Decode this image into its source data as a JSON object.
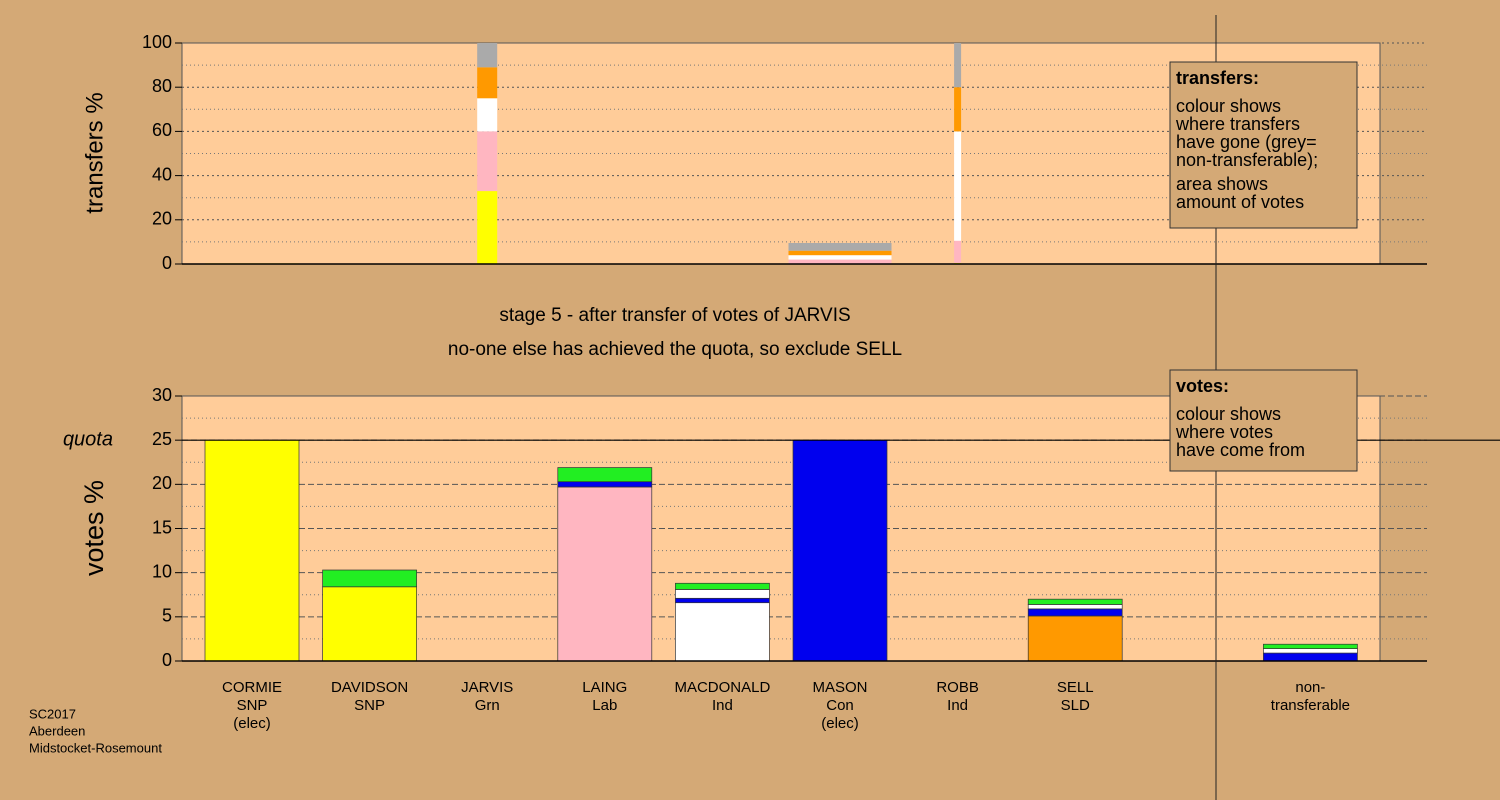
{
  "chart_data": [
    {
      "type": "bar",
      "stacked": true,
      "y_label": "transfers %",
      "ylim": [
        0,
        100
      ],
      "yticks": [
        0,
        20,
        40,
        60,
        80,
        100
      ],
      "minor_yticks": [
        10,
        30,
        50,
        70,
        90
      ],
      "stacks": [
        [
          {
            "value": 0.3,
            "color": "#ffff00"
          }
        ],
        [],
        [
          {
            "value": 33,
            "color": "#ffff00"
          },
          {
            "value": 27,
            "color": "#ffb6c1"
          },
          {
            "value": 15,
            "color": "#ffffff"
          },
          {
            "value": 14,
            "color": "#ff9900"
          },
          {
            "value": 11,
            "color": "#aaaaaa"
          }
        ],
        [],
        [],
        [
          {
            "value": 2,
            "color": "#ffb6c1"
          },
          {
            "value": 2,
            "color": "#ffffff"
          },
          {
            "value": 2,
            "color": "#ff9900"
          },
          {
            "value": 3.5,
            "color": "#aaaaaa"
          }
        ],
        [
          {
            "value": 0.5,
            "color": "#ffff00"
          },
          {
            "value": 10,
            "color": "#ffb6c1"
          },
          {
            "value": 49.5,
            "color": "#ffffff"
          },
          {
            "value": 20,
            "color": "#ff9900"
          },
          {
            "value": 20,
            "color": "#aaaaaa"
          }
        ],
        [],
        [],
        []
      ]
    },
    {
      "type": "bar",
      "stacked": true,
      "y_label": "votes %",
      "ylim": [
        0,
        30
      ],
      "yticks": [
        0,
        5,
        10,
        15,
        20,
        25,
        30
      ],
      "minor_yticks": [
        2.5,
        7.5,
        12.5,
        17.5,
        22.5,
        27.5
      ],
      "quota": {
        "label": "quota",
        "value": 25
      },
      "categories": [
        [
          "CORMIE",
          "SNP",
          "(elec)"
        ],
        [
          "DAVIDSON",
          "SNP"
        ],
        [
          "JARVIS",
          "Grn"
        ],
        [
          "LAING",
          "Lab"
        ],
        [
          "MACDONALD",
          "Ind"
        ],
        [
          "MASON",
          "Con",
          "(elec)"
        ],
        [
          "ROBB",
          "Ind"
        ],
        [
          "SELL",
          "SLD"
        ],
        null,
        [
          "non-",
          "transferable"
        ]
      ],
      "stacks": [
        [
          {
            "value": 25,
            "color": "#ffff00"
          }
        ],
        [
          {
            "value": 8.4,
            "color": "#ffff00"
          },
          {
            "value": 1.9,
            "color": "#22ee22"
          }
        ],
        [],
        [
          {
            "value": 19.7,
            "color": "#ffb6c1"
          },
          {
            "value": 0.6,
            "color": "#0000ee"
          },
          {
            "value": 1.6,
            "color": "#22ee22"
          }
        ],
        [
          {
            "value": 6.6,
            "color": "#ffffff"
          },
          {
            "value": 0.5,
            "color": "#0000ee"
          },
          {
            "value": 1.0,
            "color": "#ffffff"
          },
          {
            "value": 0.7,
            "color": "#22ee22"
          }
        ],
        [
          {
            "value": 25,
            "color": "#0000ee"
          }
        ],
        [],
        [
          {
            "value": 5.1,
            "color": "#ff9900"
          },
          {
            "value": 0.8,
            "color": "#0000ee"
          },
          {
            "value": 0.5,
            "color": "#ffffff"
          },
          {
            "value": 0.6,
            "color": "#22ee22"
          }
        ],
        [],
        [
          {
            "value": 0.9,
            "color": "#0000ee"
          },
          {
            "value": 0.5,
            "color": "#ffffff"
          },
          {
            "value": 0.5,
            "color": "#22ee22"
          }
        ]
      ]
    }
  ],
  "stage": [
    "stage 5 - after transfer of votes of JARVIS",
    "no-one else has achieved the quota, so exclude SELL"
  ],
  "transfers_note": {
    "title": "transfers:",
    "lines": [
      "colour shows",
      "where transfers",
      "have gone (grey=",
      "non-transferable);",
      "area shows",
      "amount of votes"
    ]
  },
  "votes_note": {
    "title": "votes:",
    "lines": [
      "colour shows",
      "where votes",
      "have come from"
    ]
  },
  "footer": [
    "SC2017",
    "Aberdeen",
    "Midstocket-Rosemount"
  ]
}
